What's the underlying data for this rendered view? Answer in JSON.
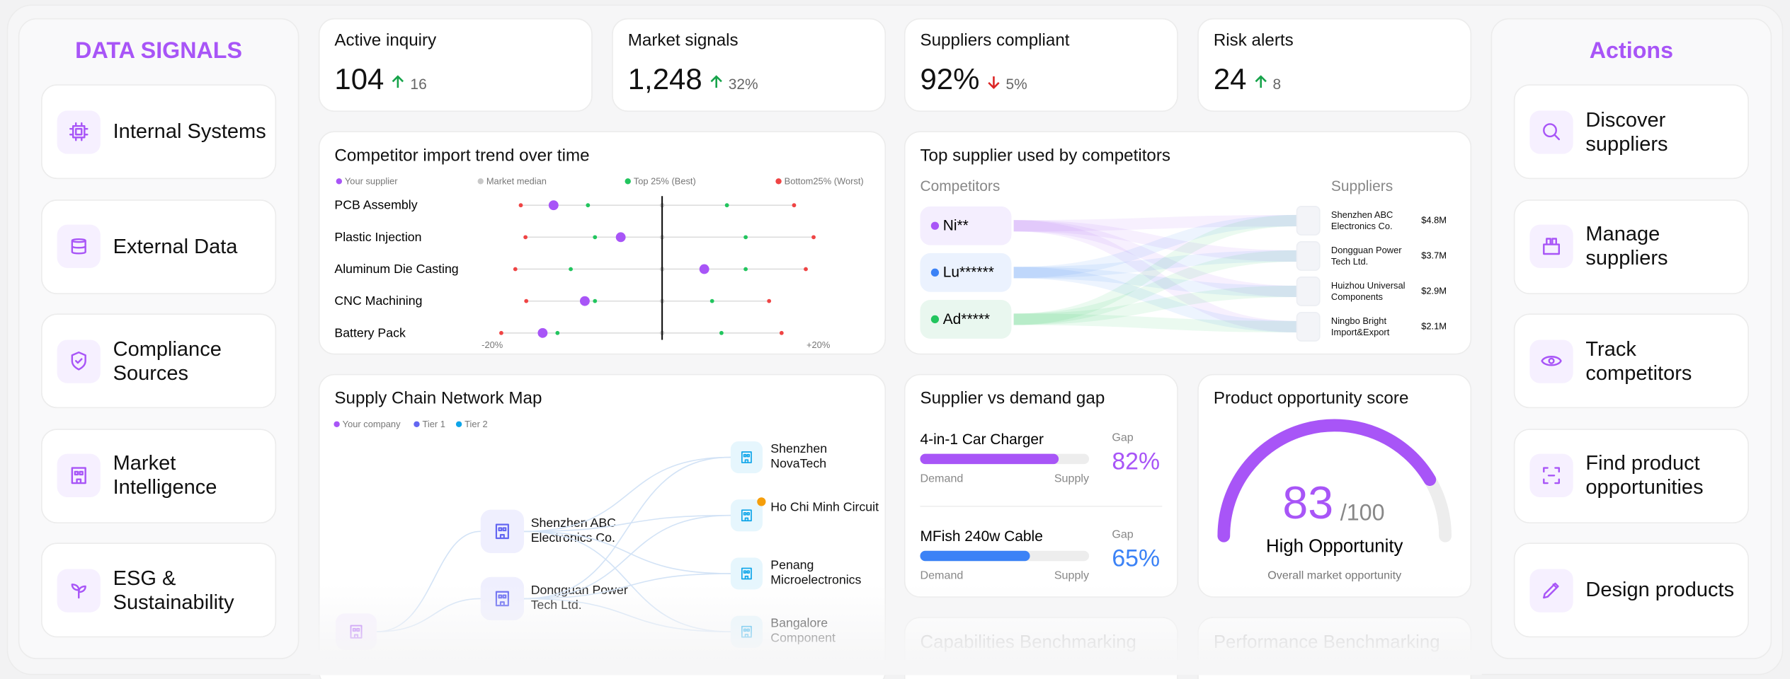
{
  "left_panel": {
    "title": "DATA SIGNALS",
    "items": [
      "Internal Systems",
      "External Data",
      "Compliance Sources",
      "Market Intelligence",
      "ESG & Sustainability"
    ]
  },
  "kpis": [
    {
      "label": "Active inquiry",
      "value": "104",
      "change": "16",
      "direction": "up"
    },
    {
      "label": "Market signals",
      "value": "1,248",
      "change": "32%",
      "direction": "up"
    },
    {
      "label": "Suppliers compliant",
      "value": "92%",
      "change": "5%",
      "direction": "down"
    },
    {
      "label": "Risk alerts",
      "value": "24",
      "change": "8",
      "direction": "up"
    }
  ],
  "chart_data": [
    {
      "type": "dot",
      "title": "Competitor import trend over time",
      "categories": [
        "PCB Assembly",
        "Plastic Injection",
        "Aluminum Die Casting",
        "CNC Machining",
        "Battery Pack"
      ],
      "series": [
        {
          "name": "Your supplier",
          "color": "#a855f7",
          "values": [
            -13.9,
            -5.3,
            5.4,
            -9.9,
            -15.3
          ]
        },
        {
          "name": "Market median",
          "color": "#c8c8c8",
          "values": [
            0,
            0,
            0,
            0,
            0
          ]
        },
        {
          "name": "Top 25% (Best)",
          "color": "#22c55e",
          "values": [
            [
              -9.5,
              8.3
            ],
            [
              -8.6,
              10.7
            ],
            [
              -11.7,
              10.7
            ],
            [
              -8.6,
              6.4
            ],
            [
              -13.4,
              7.6
            ]
          ]
        },
        {
          "name": "Bottom25% (Worst)",
          "color": "#ef4444",
          "values": [
            [
              -18.1,
              16.9
            ],
            [
              -17.5,
              19.4
            ],
            [
              -18.8,
              18.4
            ],
            [
              -17.4,
              13.7
            ],
            [
              -20.6,
              15.3
            ]
          ]
        }
      ],
      "xlim": [
        -25,
        25
      ],
      "xticks": [
        {
          "value": -20,
          "label": "-20%"
        },
        {
          "value": 20,
          "label": "+20%"
        }
      ]
    },
    {
      "type": "gauge",
      "title": "Product opportunity score",
      "value": 83,
      "max_label": "/100",
      "ylim": [
        0,
        100
      ],
      "rating": "High Opportunity",
      "caption": "Overall market opportunity",
      "color": "#a855f7",
      "track_color": "#ededed"
    }
  ],
  "sankey": {
    "title": "Top supplier used by competitors",
    "competitors_label": "Competitors",
    "suppliers_label": "Suppliers",
    "competitors": [
      {
        "name": "Ni**",
        "color": "#a855f7"
      },
      {
        "name": "Lu******",
        "color": "#3b82f6"
      },
      {
        "name": "Ad*****",
        "color": "#22c55e"
      }
    ],
    "suppliers": [
      {
        "name": "Shenzhen ABC Electronics Co.",
        "amount": "$4.8M"
      },
      {
        "name": "Dongguan Power Tech Ltd.",
        "amount": "$3.7M"
      },
      {
        "name": "Huizhou Universal Components",
        "amount": "$2.9M"
      },
      {
        "name": "Ningbo Bright Import&Export",
        "amount": "$2.1M"
      }
    ]
  },
  "network": {
    "title": "Supply Chain Network Map",
    "legend": [
      {
        "name": "Your company",
        "color": "#a855f7"
      },
      {
        "name": "Tier 1",
        "color": "#6366f1"
      },
      {
        "name": "Tier 2",
        "color": "#0ea5e9"
      }
    ],
    "tier1": [
      "Shenzhen ABC Electronics Co.",
      "Dongguan Power Tech Ltd."
    ],
    "tier2": [
      "Shenzhen NovaTech",
      "Ho Chi Minh Circuit",
      "Penang Microelectronics",
      "Bangalore Component"
    ]
  },
  "demand_gap": {
    "title": "Supplier vs demand gap",
    "gap_label": "Gap",
    "demand_label": "Demand",
    "supply_label": "Supply",
    "items": [
      {
        "name": "4-in-1 Car Charger",
        "value": 82,
        "value_label": "82%",
        "color": "#a855f7"
      },
      {
        "name": "MFish 240w Cable",
        "value": 65,
        "value_label": "65%",
        "color": "#3b82f6"
      }
    ]
  },
  "benchmarks": [
    "Capabilities Benchmarking",
    "Performance Benchmarking"
  ],
  "right_panel": {
    "title": "Actions",
    "items": [
      "Discover suppliers",
      "Manage suppliers",
      "Track competitors",
      "Find product opportunities",
      "Design products"
    ]
  }
}
